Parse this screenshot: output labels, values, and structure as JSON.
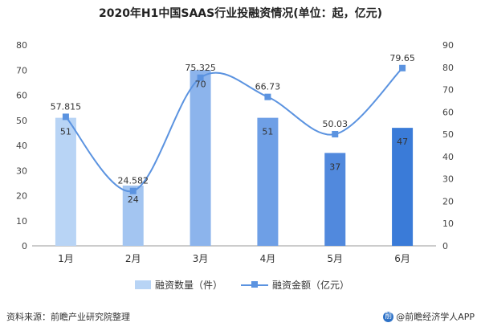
{
  "title": "2020年H1中国SAAS行业投融资情况(单位：起，亿元)",
  "chart_data": {
    "type": "bar",
    "categories": [
      "1月",
      "2月",
      "3月",
      "4月",
      "5月",
      "6月"
    ],
    "series": [
      {
        "name": "融资数量（件）",
        "type": "bar",
        "axis": "left",
        "values": [
          51,
          24,
          70,
          51,
          37,
          47
        ]
      },
      {
        "name": "融资金额（亿元）",
        "type": "line",
        "axis": "right",
        "values": [
          57.815,
          24.582,
          75.325,
          66.73,
          50.03,
          79.65
        ]
      }
    ],
    "left_axis": {
      "min": 0,
      "max": 80,
      "ticks": [
        0,
        10,
        20,
        30,
        40,
        50,
        60,
        70,
        80
      ]
    },
    "right_axis": {
      "min": 0,
      "max": 90,
      "ticks": [
        0,
        10,
        20,
        30,
        40,
        50,
        60,
        70,
        80,
        90
      ]
    },
    "grid": false,
    "legend_position": "bottom",
    "colors": {
      "bars": [
        "#b8d4f5",
        "#a3c5f1",
        "#8cb4ec",
        "#6e9fe6",
        "#5189dd",
        "#3a7bd8"
      ],
      "line": "#5b93e0"
    }
  },
  "legend": {
    "bar_label": "融资数量（件）",
    "line_label": "融资金额（亿元）"
  },
  "footer": {
    "source": "资料来源：前瞻产业研究院整理",
    "brand": "@前瞻经济学人APP",
    "brand_logo": "前"
  }
}
